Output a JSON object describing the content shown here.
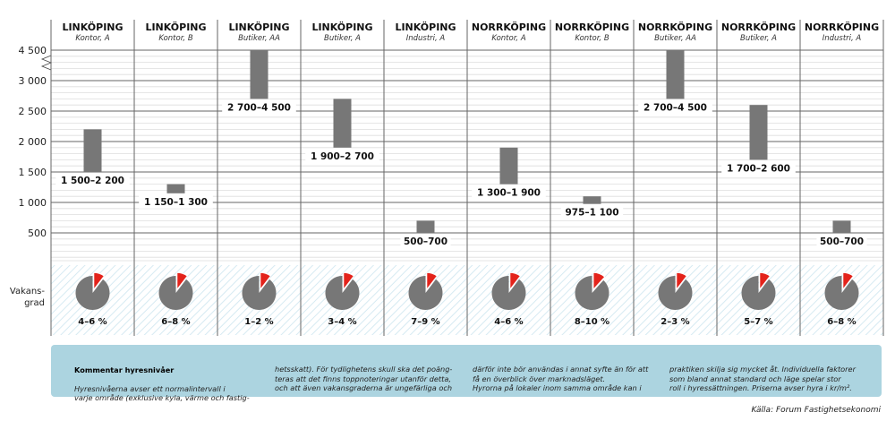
{
  "chart_data": {
    "type": "range-bar",
    "yticks": [
      "500",
      "1 000",
      "1 500",
      "2 000",
      "2 500",
      "3 000",
      "4 500"
    ],
    "ytick_values": [
      500,
      1000,
      1500,
      2000,
      2500,
      3000,
      4500
    ],
    "axis_break": [
      3000,
      4500
    ],
    "ylim": [
      0,
      4500
    ],
    "grid": true,
    "colors": {
      "bar": "#777777",
      "pie": "#777777",
      "pie_slice": "#e3231b",
      "hatch": "#d6eaf2"
    },
    "vacancy_label": "Vakans-\ngrad",
    "categories": [
      {
        "city": "LINKÖPING",
        "type": "Kontor, A",
        "low": 1500,
        "high": 2200,
        "label": "1 500–2 200",
        "vacancy": "4–6 %",
        "vacancy_mid": 5
      },
      {
        "city": "LINKÖPING",
        "type": "Kontor, B",
        "low": 1150,
        "high": 1300,
        "label": "1 150–1 300",
        "vacancy": "6–8 %",
        "vacancy_mid": 7
      },
      {
        "city": "LINKÖPING",
        "type": "Butiker, AA",
        "low": 2700,
        "high": 4500,
        "label": "2 700–4 500",
        "vacancy": "1–2 %",
        "vacancy_mid": 1.5
      },
      {
        "city": "LINKÖPING",
        "type": "Butiker, A",
        "low": 1900,
        "high": 2700,
        "label": "1 900–2 700",
        "vacancy": "3–4 %",
        "vacancy_mid": 3.5
      },
      {
        "city": "LINKÖPING",
        "type": "Industri, A",
        "low": 500,
        "high": 700,
        "label": "500–700",
        "vacancy": "7–9 %",
        "vacancy_mid": 8
      },
      {
        "city": "NORRKÖPING",
        "type": "Kontor, A",
        "low": 1300,
        "high": 1900,
        "label": "1 300–1 900",
        "vacancy": "4–6 %",
        "vacancy_mid": 5
      },
      {
        "city": "NORRKÖPING",
        "type": "Kontor, B",
        "low": 975,
        "high": 1100,
        "label": "975–1 100",
        "vacancy": "8–10 %",
        "vacancy_mid": 9
      },
      {
        "city": "NORRKÖPING",
        "type": "Butiker, AA",
        "low": 2700,
        "high": 4500,
        "label": "2 700–4 500",
        "vacancy": "2–3 %",
        "vacancy_mid": 2.5
      },
      {
        "city": "NORRKÖPING",
        "type": "Butiker, A",
        "low": 1700,
        "high": 2600,
        "label": "1 700–2 600",
        "vacancy": "5–7 %",
        "vacancy_mid": 6
      },
      {
        "city": "NORRKÖPING",
        "type": "Industri, A",
        "low": 500,
        "high": 700,
        "label": "500–700",
        "vacancy": "6–8 %",
        "vacancy_mid": 7
      }
    ]
  },
  "comment": {
    "title": "Kommentar hyresnivåer",
    "col1": "Hyresnivåerna avser ett normalintervall i\nvarje område (exklusive kyla, värme och fastig-",
    "col2": "hetsskatt). För tydlighetens skull ska det poäng-\nteras att det finns toppnoteringar utanför detta,\noch att även vakansgraderna är ungefärliga och",
    "col3": "därför inte bör användas i annat syfte än för att\nfå en överblick över marknadsläget.\n    Hyrorna på lokaler inom samma område kan i",
    "col4": "praktiken skilja sig mycket åt. Individuella faktorer\nsom bland annat standard och läge spelar stor\nroll i hyressättningen. Priserna avser hyra i kr/m²."
  },
  "source": "Källa: Forum Fastighetsekonomi"
}
